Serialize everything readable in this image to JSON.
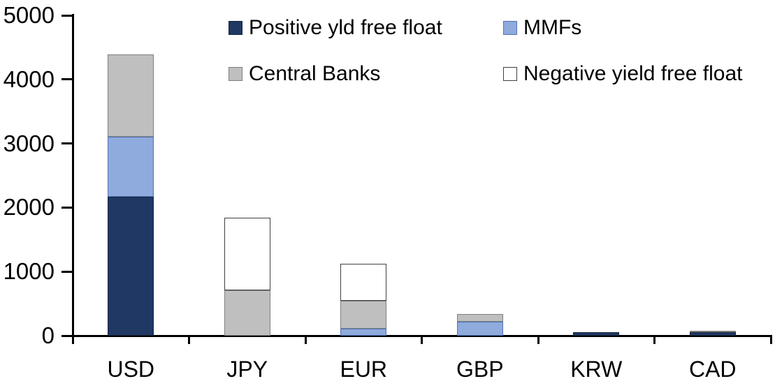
{
  "chart_data": {
    "type": "bar",
    "stacked": true,
    "title": "",
    "xlabel": "",
    "ylabel": "",
    "ylim": [
      0,
      5000
    ],
    "yticks": [
      0,
      1000,
      2000,
      3000,
      4000,
      5000
    ],
    "grid": false,
    "legend_position": "top",
    "axis_color": "#000000",
    "background_color": "#FFFFFF",
    "categories": [
      "USD",
      "JPY",
      "EUR",
      "GBP",
      "KRW",
      "CAD"
    ],
    "series": [
      {
        "name": "Positive yld free float",
        "color": "#1F3864",
        "border": "#17233B",
        "values": [
          2170,
          0,
          0,
          0,
          50,
          50
        ]
      },
      {
        "name": "MMFs",
        "color": "#8FAADC",
        "border": "#4F74B5",
        "values": [
          935,
          0,
          110,
          215,
          0,
          0
        ]
      },
      {
        "name": "Central Banks",
        "color": "#BFBFBF",
        "border": "#7F7F7F",
        "values": [
          1285,
          705,
          435,
          120,
          0,
          30
        ]
      },
      {
        "name": "Negative yield free float",
        "color": "#FFFFFF",
        "border": "#404040",
        "values": [
          0,
          1140,
          575,
          0,
          0,
          0
        ]
      }
    ],
    "totals": {
      "USD": 4390,
      "JPY": 1845,
      "EUR": 1120,
      "GBP": 335,
      "KRW": 50,
      "CAD": 80
    },
    "legend_items": [
      {
        "series_index": 0,
        "label": "Positive yld free float"
      },
      {
        "series_index": 1,
        "label": "MMFs"
      },
      {
        "series_index": 2,
        "label": "Central Banks"
      },
      {
        "series_index": 3,
        "label": "Negative yield free float"
      }
    ]
  }
}
